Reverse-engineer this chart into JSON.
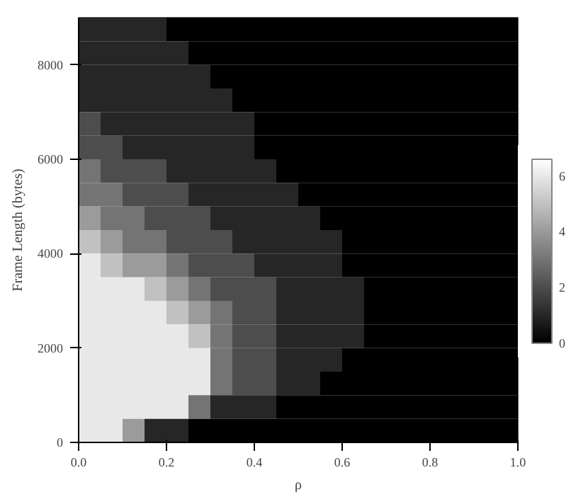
{
  "chart_data": {
    "type": "heatmap",
    "xlabel": "ρ",
    "ylabel": "Frame Length (bytes)",
    "x": [
      0.025,
      0.075,
      0.125,
      0.175,
      0.225,
      0.275,
      0.325,
      0.375,
      0.425,
      0.475,
      0.525,
      0.575,
      0.625,
      0.675,
      0.725,
      0.775,
      0.825,
      0.875,
      0.925,
      0.975
    ],
    "y": [
      8750,
      8250,
      7750,
      7250,
      6750,
      6250,
      5750,
      5250,
      4750,
      4250,
      3750,
      3250,
      2750,
      2250,
      1750,
      1250,
      750,
      250
    ],
    "xlim": [
      0,
      1
    ],
    "xticks": [
      {
        "value": 0,
        "label": "0.0"
      },
      {
        "value": 0.2,
        "label": "0.2"
      },
      {
        "value": 0.4,
        "label": "0.4"
      },
      {
        "value": 0.6,
        "label": "0.6"
      },
      {
        "value": 0.8,
        "label": "0.8"
      },
      {
        "value": 1,
        "label": "1.0"
      }
    ],
    "ylim": [
      0,
      9000
    ],
    "yticks": [
      0,
      2000,
      4000,
      6000,
      8000
    ],
    "clim": [
      0,
      6.6
    ],
    "cticks": [
      0,
      2,
      4,
      6
    ],
    "grid": false,
    "cells": [
      [
        1,
        1,
        1,
        1,
        0,
        0,
        0,
        0,
        0,
        0,
        0,
        0,
        0,
        0,
        0,
        0,
        0,
        0,
        0,
        0
      ],
      [
        1,
        1,
        1,
        1,
        1,
        0,
        0,
        0,
        0,
        0,
        0,
        0,
        0,
        0,
        0,
        0,
        0,
        0,
        0,
        0
      ],
      [
        1,
        1,
        1,
        1,
        1,
        1,
        0,
        0,
        0,
        0,
        0,
        0,
        0,
        0,
        0,
        0,
        0,
        0,
        0,
        0
      ],
      [
        1,
        1,
        1,
        1,
        1,
        1,
        1,
        0,
        0,
        0,
        0,
        0,
        0,
        0,
        0,
        0,
        0,
        0,
        0,
        0
      ],
      [
        2,
        1,
        1,
        1,
        1,
        1,
        1,
        1,
        0,
        0,
        0,
        0,
        0,
        0,
        0,
        0,
        0,
        0,
        0,
        0
      ],
      [
        2,
        2,
        1,
        1,
        1,
        1,
        1,
        1,
        0,
        0,
        0,
        0,
        0,
        0,
        0,
        0,
        0,
        0,
        0,
        0
      ],
      [
        3,
        2,
        2,
        2,
        1,
        1,
        1,
        1,
        1,
        0,
        0,
        0,
        0,
        0,
        0,
        0,
        0,
        0,
        0,
        0
      ],
      [
        3,
        3,
        2,
        2,
        2,
        1,
        1,
        1,
        1,
        1,
        0,
        0,
        0,
        0,
        0,
        0,
        0,
        0,
        0,
        0
      ],
      [
        4,
        3,
        3,
        2,
        2,
        2,
        1,
        1,
        1,
        1,
        1,
        0,
        0,
        0,
        0,
        0,
        0,
        0,
        0,
        0
      ],
      [
        5,
        4,
        3,
        3,
        2,
        2,
        2,
        1,
        1,
        1,
        1,
        1,
        0,
        0,
        0,
        0,
        0,
        0,
        0,
        0
      ],
      [
        6,
        5,
        4,
        4,
        3,
        2,
        2,
        2,
        1,
        1,
        1,
        1,
        0,
        0,
        0,
        0,
        0,
        0,
        0,
        0
      ],
      [
        6,
        6,
        6,
        5,
        4,
        3,
        2,
        2,
        2,
        1,
        1,
        1,
        1,
        0,
        0,
        0,
        0,
        0,
        0,
        0
      ],
      [
        6,
        6,
        6,
        6,
        5,
        4,
        3,
        2,
        2,
        1,
        1,
        1,
        1,
        0,
        0,
        0,
        0,
        0,
        0,
        0
      ],
      [
        6,
        6,
        6,
        6,
        6,
        5,
        3,
        2,
        2,
        1,
        1,
        1,
        1,
        0,
        0,
        0,
        0,
        0,
        0,
        0
      ],
      [
        6,
        6,
        6,
        6,
        6,
        6,
        3,
        2,
        2,
        1,
        1,
        1,
        0,
        0,
        0,
        0,
        0,
        0,
        0,
        0
      ],
      [
        6,
        6,
        6,
        6,
        6,
        6,
        3,
        2,
        2,
        1,
        1,
        0,
        0,
        0,
        0,
        0,
        0,
        0,
        0,
        0
      ],
      [
        6,
        6,
        6,
        6,
        6,
        3,
        1,
        1,
        1,
        0,
        0,
        0,
        0,
        0,
        0,
        0,
        0,
        0,
        0,
        0
      ],
      [
        6,
        6,
        4,
        1,
        1,
        0,
        0,
        0,
        0,
        0,
        0,
        0,
        0,
        0,
        0,
        0,
        0,
        0,
        0,
        0
      ]
    ]
  }
}
